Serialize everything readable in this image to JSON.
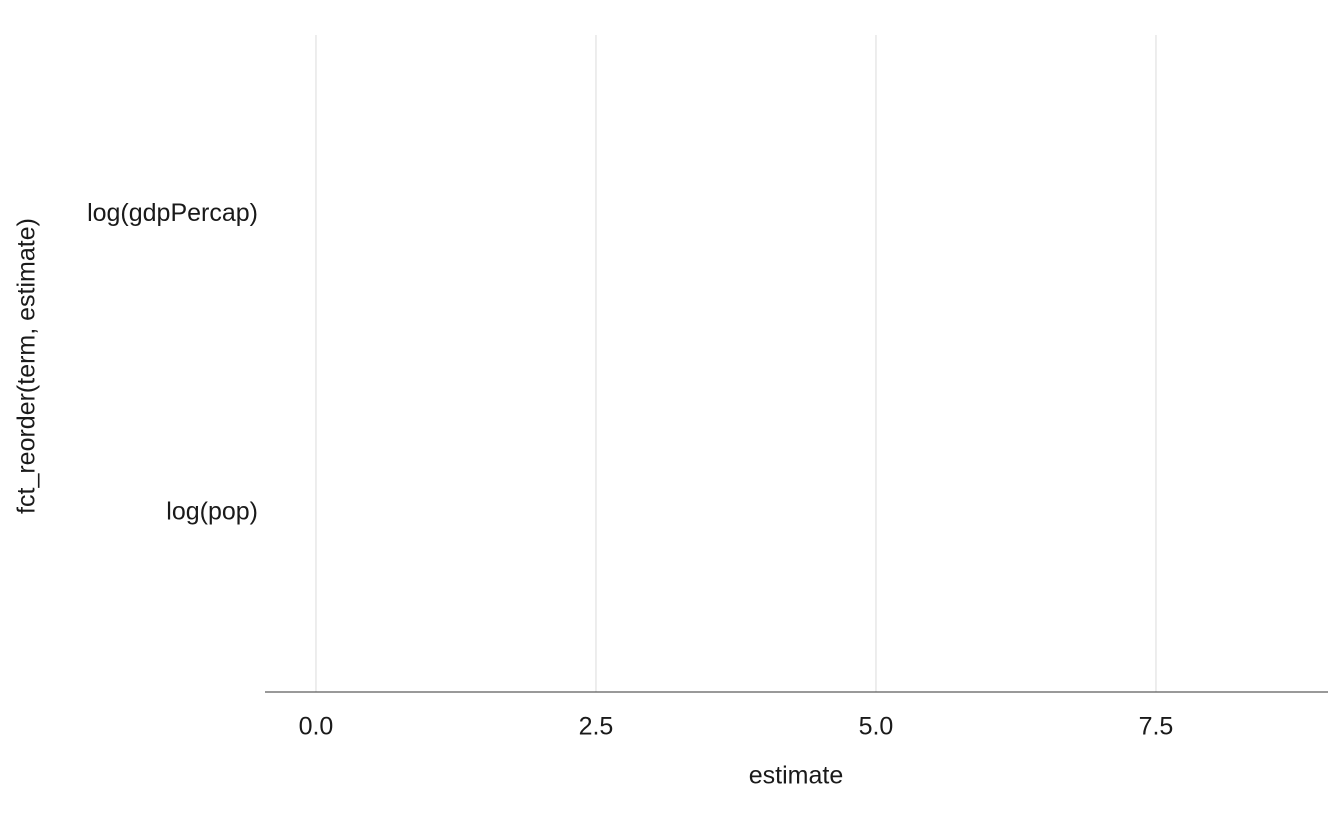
{
  "chart_data": {
    "type": "dot",
    "x_label": "estimate",
    "y_label": "fct_reorder(term, estimate)",
    "categories": [
      "log(gdpPercap)",
      "log(pop)"
    ],
    "xlim": [
      -0.455,
      9.036
    ],
    "xticks": [
      {
        "value": 0,
        "label": "0.0"
      },
      2.5,
      {
        "value": 5,
        "label": "5.0"
      },
      7.5
    ],
    "grid": true
  }
}
